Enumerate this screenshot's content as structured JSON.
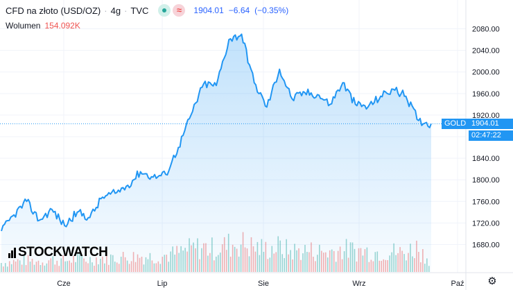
{
  "header": {
    "title": "CFD na złoto (USD/OZ)",
    "interval": "4g",
    "source": "TVC",
    "wave_icon_glyph": "≈",
    "price": "1904.01",
    "change": "−6.64",
    "change_pct": "(−0.35%)"
  },
  "volume": {
    "label": "Wolumen",
    "value": "154.092K"
  },
  "price_label": {
    "symbol": "GOLD",
    "price": "1904.01",
    "countdown": "02:47:22"
  },
  "logo_text": "STOCKWATCH",
  "colors": {
    "line": "#2196f3",
    "area_top": "#2196f3",
    "vol_up": "#26a69a",
    "vol_down": "#ef5350",
    "tag": "#2196f3",
    "text": "#131722",
    "price_text": "#2962ff"
  },
  "chart_data": {
    "type": "area",
    "symbol": "CFD na złoto (USD/OZ)",
    "interval": "4g",
    "x_labels": [
      "Cze",
      "Lip",
      "Sie",
      "Wrz",
      "Paź"
    ],
    "y_ticks": [
      "1680.00",
      "1720.00",
      "1760.00",
      "1800.00",
      "1840.00",
      "1880.00",
      "1920.00",
      "1960.00",
      "2000.00",
      "2040.00",
      "2080.00"
    ],
    "ylim": [
      1660,
      2100
    ],
    "last_price": 1904.01,
    "series": [
      {
        "x": [
          "Cze",
          "",
          "",
          "",
          "",
          "",
          "",
          "",
          "",
          "Lip",
          "",
          "",
          "",
          "",
          "",
          "",
          "",
          "",
          "Sie",
          "",
          "",
          "",
          "",
          "",
          "",
          "",
          "",
          "Wrz",
          "",
          "",
          "",
          "",
          "",
          "",
          "Paź"
        ],
        "values": [
          1705,
          1735,
          1760,
          1725,
          1745,
          1715,
          1740,
          1730,
          1768,
          1775,
          1790,
          1815,
          1805,
          1810,
          1860,
          1920,
          1978,
          1975,
          2060,
          2070,
          1980,
          1935,
          2005,
          1950,
          1962,
          1958,
          1940,
          1980,
          1940,
          1935,
          1955,
          1968,
          1955,
          1910,
          1904
        ]
      }
    ],
    "volume": [
      0.22,
      0.25,
      0.28,
      0.26,
      0.3,
      0.27,
      0.32,
      0.3,
      0.34,
      0.35,
      0.36,
      0.38,
      0.37,
      0.4,
      0.45,
      0.55,
      0.6,
      0.55,
      0.65,
      0.7,
      0.6,
      0.55,
      0.6,
      0.5,
      0.52,
      0.5,
      0.48,
      0.55,
      0.52,
      0.5,
      0.48,
      0.5,
      0.45,
      0.6,
      0.3
    ],
    "grid": true
  }
}
